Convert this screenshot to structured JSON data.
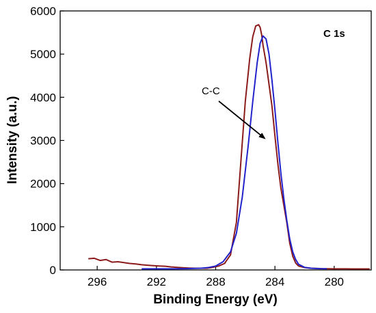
{
  "chart_data": {
    "type": "line",
    "title": "",
    "corner_label": "C 1s",
    "xlabel": "Binding Energy (eV)",
    "ylabel": "Intensity (a.u.)",
    "xlim": [
      298.5,
      277.5
    ],
    "ylim": [
      0,
      6000
    ],
    "x_reversed": true,
    "x_ticks": [
      "296",
      "292",
      "288",
      "284",
      "280"
    ],
    "y_ticks": [
      "0",
      "1000",
      "2000",
      "3000",
      "4000",
      "5000",
      "6000"
    ],
    "grid": false,
    "annotation": {
      "text": "C-C",
      "arrow_to": {
        "x": 284.7,
        "y": 3050
      }
    },
    "series": [
      {
        "color": "#8b1a1a",
        "x": [
          296.6,
          296.2,
          295.8,
          295.4,
          295.0,
          294.6,
          294.2,
          293.8,
          293.4,
          293.0,
          292.6,
          292.2,
          291.8,
          291.4,
          291.0,
          290.6,
          290.2,
          289.8,
          289.4,
          289.0,
          288.6,
          288.2,
          287.8,
          287.4,
          287.0,
          286.6,
          286.3,
          286.0,
          285.7,
          285.5,
          285.3,
          285.1,
          285.0,
          284.9,
          284.8,
          284.6,
          284.4,
          284.2,
          284.0,
          283.8,
          283.6,
          283.4,
          283.2,
          283.0,
          282.8,
          282.6,
          282.4,
          282.0,
          281.6,
          281.2,
          280.8,
          280.4,
          280.0,
          279.6,
          279.2,
          278.8,
          278.4,
          278.0,
          277.6
        ],
        "y": [
          260,
          270,
          220,
          240,
          180,
          190,
          170,
          150,
          140,
          120,
          110,
          100,
          90,
          85,
          70,
          60,
          50,
          45,
          40,
          40,
          40,
          60,
          90,
          150,
          350,
          1100,
          2500,
          3900,
          4900,
          5400,
          5650,
          5680,
          5620,
          5450,
          5200,
          4800,
          4300,
          3800,
          3100,
          2450,
          1900,
          1500,
          1100,
          620,
          320,
          160,
          90,
          55,
          40,
          35,
          30,
          28,
          26,
          25,
          25,
          24,
          24,
          24,
          24
        ]
      },
      {
        "color": "#2222cc",
        "x": [
          293.0,
          292.0,
          291.0,
          290.0,
          289.0,
          288.5,
          288.0,
          287.5,
          287.0,
          286.6,
          286.2,
          285.8,
          285.5,
          285.2,
          285.0,
          284.8,
          284.6,
          284.4,
          284.2,
          284.0,
          283.8,
          283.6,
          283.4,
          283.2,
          283.0,
          282.8,
          282.6,
          282.4,
          282.0,
          281.5,
          281.0,
          280.5
        ],
        "y": [
          25,
          25,
          26,
          30,
          40,
          55,
          90,
          190,
          420,
          850,
          1700,
          2900,
          3900,
          4800,
          5250,
          5420,
          5350,
          5000,
          4400,
          3700,
          2950,
          2250,
          1650,
          1150,
          720,
          420,
          240,
          130,
          60,
          38,
          30,
          28
        ]
      }
    ]
  }
}
